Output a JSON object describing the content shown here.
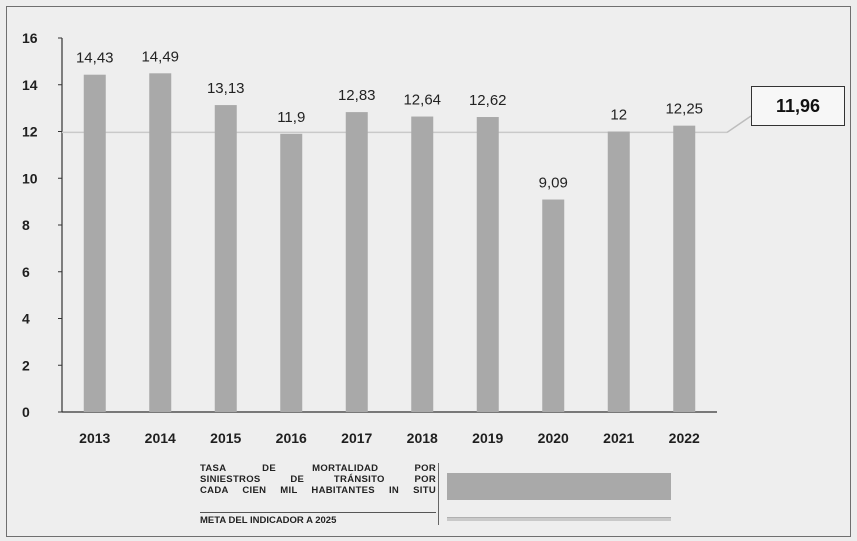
{
  "chart_data": {
    "type": "bar",
    "categories": [
      "2013",
      "2014",
      "2015",
      "2016",
      "2017",
      "2018",
      "2019",
      "2020",
      "2021",
      "2022"
    ],
    "series": [
      {
        "name": "TASA DE MORTALIDAD POR SINIESTROS DE TRÁNSITO POR CADA CIEN MIL HABITANTES IN SITU",
        "values": [
          14.43,
          14.49,
          13.13,
          11.9,
          12.83,
          12.64,
          12.62,
          9.09,
          12,
          12.25
        ]
      }
    ],
    "data_labels": [
      "14,43",
      "14,49",
      "13,13",
      "11,9",
      "12,83",
      "12,64",
      "12,62",
      "9,09",
      "12",
      "12,25"
    ],
    "yticks": [
      "0",
      "2",
      "4",
      "6",
      "8",
      "10",
      "12",
      "14",
      "16"
    ],
    "ylim": [
      0,
      16
    ],
    "target": {
      "name": "META DEL INDICADOR A 2025",
      "value": 11.96,
      "label": "11,96"
    },
    "grid": false,
    "legend_position": "bottom",
    "title": "",
    "xlabel": "",
    "ylabel": ""
  },
  "legend": {
    "bar_lines": [
      "TASA DE MORTALIDAD POR",
      "SINIESTROS DE TRÁNSITO POR",
      "CADA CIEN MIL HABITANTES IN SITU"
    ],
    "target_label": "META DEL INDICADOR A 2025"
  },
  "colors": {
    "bar": "#a9a9a9",
    "target_line": "#c9c9c9",
    "axis": "#333333",
    "background": "#eeeeee"
  }
}
